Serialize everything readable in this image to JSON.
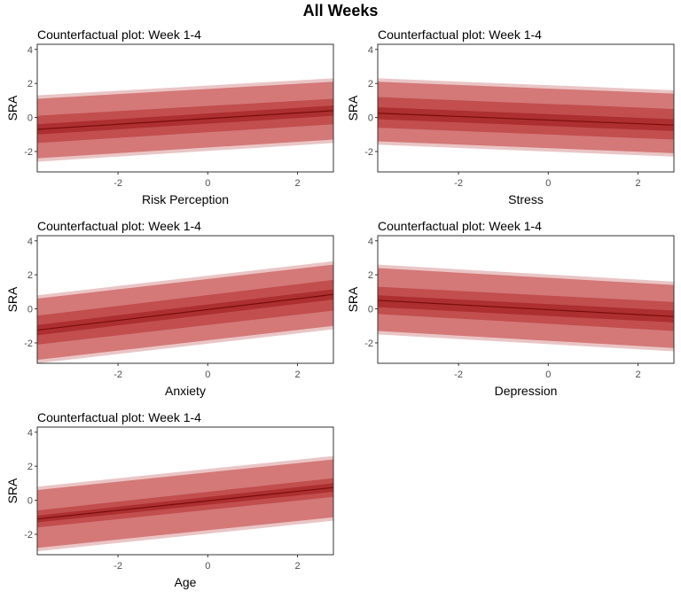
{
  "main_title": "All Weeks",
  "colors": {
    "band_outer": "#eac5c5",
    "band_mid": "#d47878",
    "band_inner": "#c24e4e",
    "band_core": "#ad2f2f",
    "line": "#7a0c0c"
  },
  "chart_data": [
    {
      "type": "area",
      "title": "Counterfactual plot: Week 1-4",
      "xlabel": "Risk Perception",
      "ylabel": "SRA",
      "xlim": [
        -3.8,
        2.8
      ],
      "ylim": [
        -3.2,
        4.3
      ],
      "xticks": [
        -2,
        0,
        2
      ],
      "yticks": [
        -2,
        0,
        2,
        4
      ],
      "x": [
        -3.8,
        2.8
      ],
      "mean": [
        -0.7,
        0.4
      ],
      "bands": [
        {
          "level": "outer",
          "lower": [
            -2.6,
            -1.5
          ],
          "upper": [
            1.3,
            2.3
          ]
        },
        {
          "level": "mid",
          "lower": [
            -2.4,
            -1.3
          ],
          "upper": [
            1.1,
            2.1
          ]
        },
        {
          "level": "inner",
          "lower": [
            -1.5,
            -0.4
          ],
          "upper": [
            0.1,
            1.1
          ]
        },
        {
          "level": "core",
          "lower": [
            -1.0,
            0.1
          ],
          "upper": [
            -0.4,
            0.7
          ]
        }
      ]
    },
    {
      "type": "area",
      "title": "Counterfactual plot: Week 1-4",
      "xlabel": "Stress",
      "ylabel": "SRA",
      "xlim": [
        -3.8,
        2.8
      ],
      "ylim": [
        -3.2,
        4.3
      ],
      "xticks": [
        -2,
        0,
        2
      ],
      "yticks": [
        -2,
        0,
        2,
        4
      ],
      "x": [
        -3.8,
        2.8
      ],
      "mean": [
        0.25,
        -0.45
      ],
      "bands": [
        {
          "level": "outer",
          "lower": [
            -1.6,
            -2.3
          ],
          "upper": [
            2.3,
            1.6
          ]
        },
        {
          "level": "mid",
          "lower": [
            -1.4,
            -2.1
          ],
          "upper": [
            2.1,
            1.4
          ]
        },
        {
          "level": "inner",
          "lower": [
            -0.6,
            -1.3
          ],
          "upper": [
            1.2,
            0.5
          ]
        },
        {
          "level": "core",
          "lower": [
            -0.1,
            -0.8
          ],
          "upper": [
            0.6,
            -0.1
          ]
        }
      ]
    },
    {
      "type": "area",
      "title": "Counterfactual plot: Week 1-4",
      "xlabel": "Anxiety",
      "ylabel": "SRA",
      "xlim": [
        -3.8,
        2.8
      ],
      "ylim": [
        -3.2,
        4.3
      ],
      "xticks": [
        -2,
        0,
        2
      ],
      "yticks": [
        -2,
        0,
        2,
        4
      ],
      "x": [
        -3.8,
        2.8
      ],
      "mean": [
        -1.25,
        0.85
      ],
      "bands": [
        {
          "level": "outer",
          "lower": [
            -3.2,
            -1.2
          ],
          "upper": [
            0.8,
            2.8
          ]
        },
        {
          "level": "mid",
          "lower": [
            -3.0,
            -1.0
          ],
          "upper": [
            0.6,
            2.6
          ]
        },
        {
          "level": "inner",
          "lower": [
            -2.1,
            -0.1
          ],
          "upper": [
            -0.4,
            1.7
          ]
        },
        {
          "level": "core",
          "lower": [
            -1.55,
            0.55
          ],
          "upper": [
            -0.95,
            1.15
          ]
        }
      ]
    },
    {
      "type": "area",
      "title": "Counterfactual plot: Week 1-4",
      "xlabel": "Depression",
      "ylabel": "SRA",
      "xlim": [
        -3.8,
        2.8
      ],
      "ylim": [
        -3.2,
        4.3
      ],
      "xticks": [
        -2,
        0,
        2
      ],
      "yticks": [
        -2,
        0,
        2,
        4
      ],
      "x": [
        -3.8,
        2.8
      ],
      "mean": [
        0.5,
        -0.45
      ],
      "bands": [
        {
          "level": "outer",
          "lower": [
            -1.5,
            -2.5
          ],
          "upper": [
            2.6,
            1.6
          ]
        },
        {
          "level": "mid",
          "lower": [
            -1.3,
            -2.3
          ],
          "upper": [
            2.4,
            1.4
          ]
        },
        {
          "level": "inner",
          "lower": [
            -0.3,
            -1.3
          ],
          "upper": [
            1.3,
            0.4
          ]
        },
        {
          "level": "core",
          "lower": [
            0.1,
            -0.8
          ],
          "upper": [
            0.8,
            -0.1
          ]
        }
      ]
    },
    {
      "type": "area",
      "title": "Counterfactual plot: Week 1-4",
      "xlabel": "Age",
      "ylabel": "SRA",
      "xlim": [
        -3.8,
        2.8
      ],
      "ylim": [
        -3.2,
        4.3
      ],
      "xticks": [
        -2,
        0,
        2
      ],
      "yticks": [
        -2,
        0,
        2,
        4
      ],
      "x": [
        -3.8,
        2.8
      ],
      "mean": [
        -1.1,
        0.75
      ],
      "bands": [
        {
          "level": "outer",
          "lower": [
            -3.0,
            -1.2
          ],
          "upper": [
            0.8,
            2.6
          ]
        },
        {
          "level": "mid",
          "lower": [
            -2.8,
            -1.0
          ],
          "upper": [
            0.6,
            2.4
          ]
        },
        {
          "level": "inner",
          "lower": [
            -1.6,
            0.2
          ],
          "upper": [
            -0.6,
            1.3
          ]
        },
        {
          "level": "core",
          "lower": [
            -1.3,
            0.5
          ],
          "upper": [
            -0.9,
            1.0
          ]
        }
      ]
    }
  ]
}
